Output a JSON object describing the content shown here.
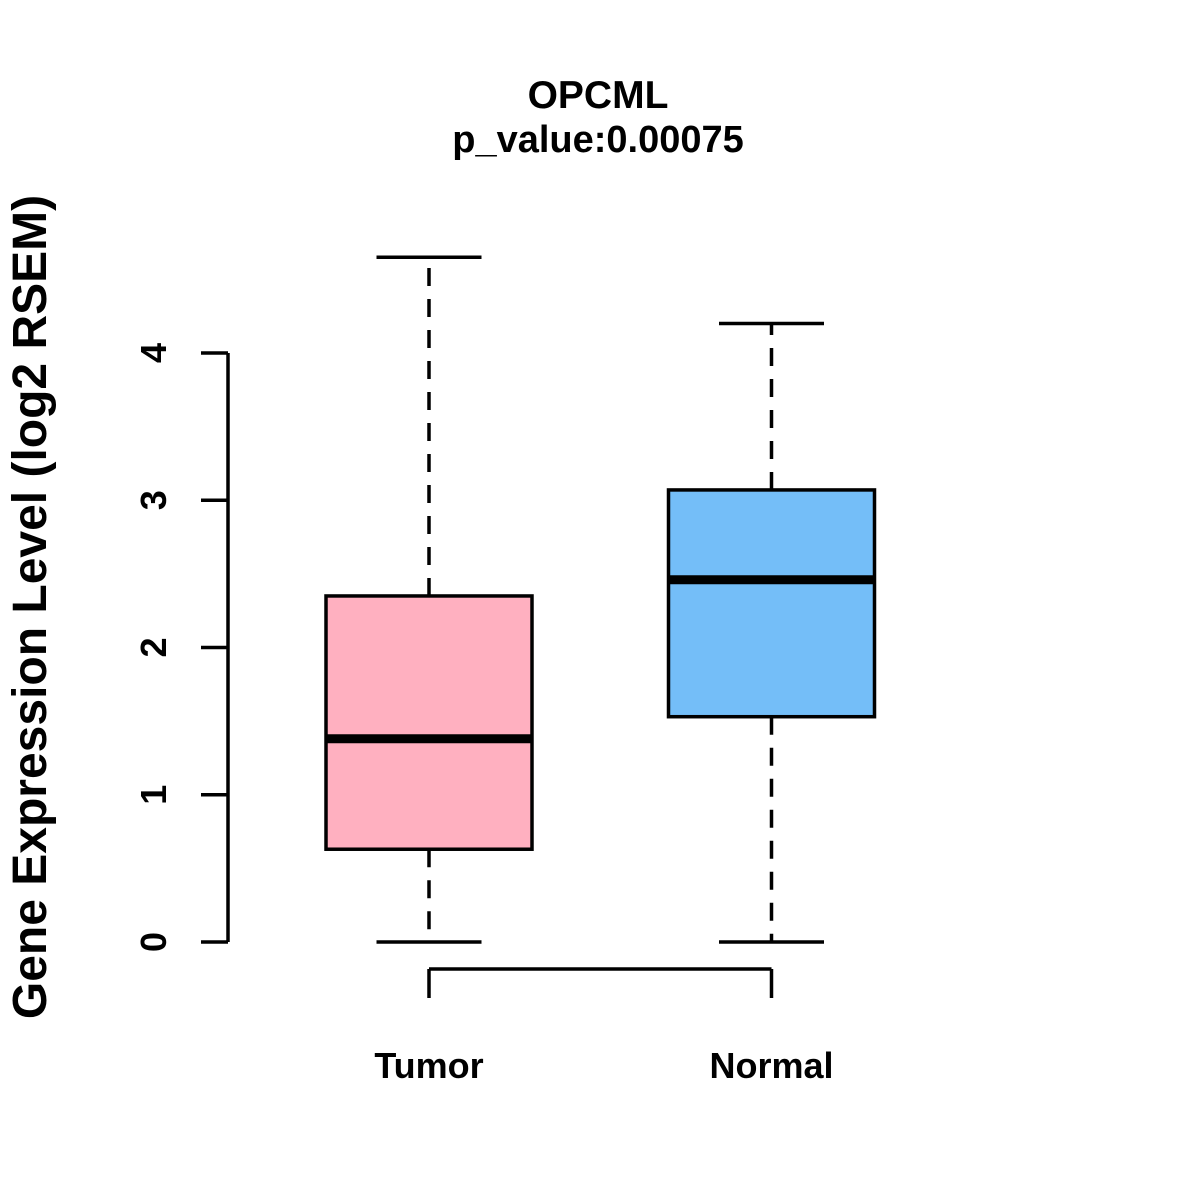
{
  "figure": {
    "background_color": "#FFFFFF",
    "stroke_color": "#000000"
  },
  "chart_data": {
    "type": "boxplot",
    "title": "OPCML",
    "subtitle": "p_value:0.00075",
    "ylabel": "Gene Expression Level (log2 RSEM)",
    "xlabel": "",
    "yticks": [
      0,
      1,
      2,
      3,
      4
    ],
    "ylim": [
      0,
      4
    ],
    "grid": false,
    "legend": "none",
    "whisker_style": "dashed",
    "groups": [
      {
        "label": "Tumor",
        "min": 0.0,
        "q1": 0.63,
        "median": 1.38,
        "q3": 2.35,
        "max": 4.65,
        "fill_color": "#FFB0C0"
      },
      {
        "label": "Normal",
        "min": 0.0,
        "q1": 1.53,
        "median": 2.46,
        "q3": 3.07,
        "max": 4.2,
        "fill_color": "#74BEF8"
      }
    ]
  }
}
